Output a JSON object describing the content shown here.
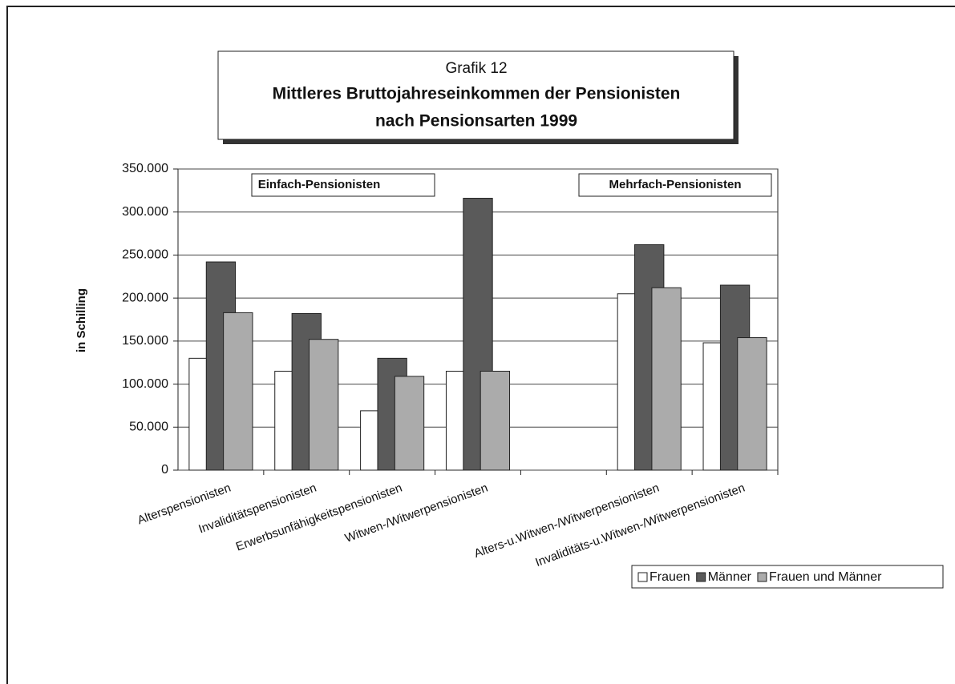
{
  "chart_data": {
    "type": "bar",
    "subtitle": "Grafik 12",
    "title_lines": [
      "Mittleres Bruttojahreseinkommen der Pensionisten",
      "nach Pensionsarten 1999"
    ],
    "ylabel": "in Schilling",
    "annotations": [
      "Einfach-Pensionisten",
      "Mehrfach-Pensionisten"
    ],
    "categories": [
      "Alterspensionisten",
      "Invaliditätspensionisten",
      "Erwerbsunfähigkeitspensionisten",
      "Witwen-/Witwerpensionisten",
      null,
      "Alters-u.Witwen-/Witwerpensionisten",
      "Invaliditäts-u.Witwen-/Witwerpensionisten"
    ],
    "series": [
      {
        "name": "Frauen",
        "color": "#ffffff",
        "values": [
          130000,
          115000,
          69000,
          115000,
          null,
          205000,
          148000
        ]
      },
      {
        "name": "Männer",
        "color": "#5a5a5a",
        "values": [
          242000,
          182000,
          130000,
          316000,
          null,
          262000,
          215000
        ]
      },
      {
        "name": "Frauen und Männer",
        "color": "#ababab",
        "values": [
          183000,
          152000,
          109000,
          115000,
          null,
          212000,
          154000
        ]
      }
    ],
    "ylim": [
      0,
      350000
    ],
    "yticks": [
      0,
      {
        "value": 50000,
        "label": "50.000"
      },
      {
        "value": 100000,
        "label": "100.000"
      },
      {
        "value": 150000,
        "label": "150.000"
      },
      {
        "value": 200000,
        "label": "200.000"
      },
      {
        "value": 250000,
        "label": "250.000"
      },
      {
        "value": 300000,
        "label": "300.000"
      },
      {
        "value": 350000,
        "label": "350.000"
      }
    ],
    "grid": true,
    "legend": "bottom-right"
  }
}
